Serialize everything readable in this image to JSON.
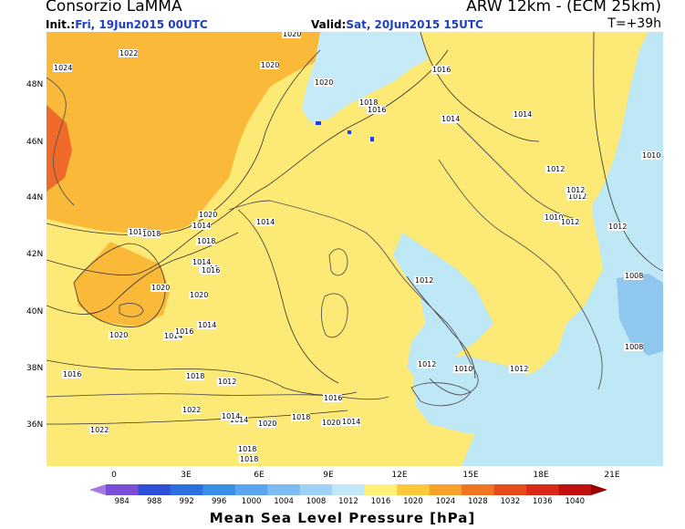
{
  "header": {
    "org": "Consorzio LaMMA",
    "model": "ARW 12km  -  (ECM 25km)",
    "init_label": "Init.:",
    "init_value": "Fri, 19Jun2015 00UTC",
    "valid_label": "Valid:",
    "valid_value": "Sat, 20Jun2015 15UTC",
    "forecast_hour": "T=+39h"
  },
  "axes": {
    "latitudes": [
      "48N",
      "46N",
      "44N",
      "42N",
      "40N",
      "38N",
      "36N"
    ],
    "longitudes": [
      "0",
      "3E",
      "6E",
      "9E",
      "12E",
      "15E",
      "18E",
      "21E"
    ]
  },
  "isobar_labels": [
    "1020",
    "1024",
    "1022",
    "1020",
    "1020",
    "1016",
    "1014",
    "1018",
    "1016",
    "1014",
    "1012",
    "1010",
    "1012",
    "1012",
    "1010",
    "1012",
    "1012",
    "1008",
    "1012",
    "1008",
    "1012",
    "1010",
    "1012",
    "1016",
    "1014",
    "1018",
    "1020",
    "1018",
    "1018",
    "1014",
    "1020",
    "1020",
    "1020",
    "1018",
    "1018",
    "1018",
    "1016",
    "1014",
    "1016",
    "1016",
    "1014",
    "1016",
    "1014",
    "1020",
    "1018",
    "1022",
    "1020",
    "1022",
    "1014",
    "1014",
    "1012",
    "1014"
  ],
  "colorbar": {
    "title": "Mean Sea Level Pressure [hPa]",
    "ticks": [
      "984",
      "988",
      "992",
      "996",
      "1000",
      "1004",
      "1008",
      "1012",
      "1016",
      "1020",
      "1024",
      "1028",
      "1032",
      "1036",
      "1040"
    ],
    "colors": [
      "#7a4fd6",
      "#2e4fd8",
      "#2b6fe0",
      "#3b8ee8",
      "#5aa6ee",
      "#7cbcf2",
      "#9ed2f6",
      "#c2e8f8",
      "#fff07a",
      "#fdc83a",
      "#f7a12a",
      "#f07522",
      "#e54a1c",
      "#d82a16",
      "#c01010"
    ],
    "end_left": "#a07ae0",
    "end_right": "#9a0000"
  },
  "colors": {
    "land_outline": "#555555",
    "isobar": "#333333",
    "lake": "#1a3cff"
  }
}
